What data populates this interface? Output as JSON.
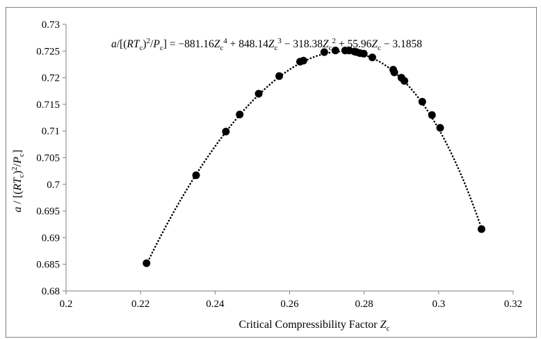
{
  "chart_data": {
    "type": "scatter",
    "title": "",
    "equation": {
      "lhs_a": "a",
      "lhs_open": "/[(",
      "lhs_R": "RT",
      "lhs_c1": "c",
      "lhs_close": ")",
      "lhs_sup2": "2",
      "lhs_slash": "/",
      "lhs_P": "P",
      "lhs_c2": "c",
      "lhs_end": "] = ",
      "term1": "−881.16",
      "z1": "Z",
      "c1": "c",
      "p1": "4",
      "term2": " + 848.14",
      "z2": "Z",
      "c2": "c",
      "p2": "3",
      "term3": " − 318.38",
      "z3": "Z",
      "c3": "c",
      "p3": "2",
      "term4": " + 55.96",
      "z4": "Z",
      "c4": "c",
      "term5": " − 3.1858"
    },
    "xlabel": {
      "text": "Critical Compressibility Factor  ",
      "var": "Z",
      "sub": "c"
    },
    "ylabel": {
      "a": "a",
      "open": " / [(",
      "RT": "RT",
      "c1": "c",
      "close": ")",
      "sup": "2",
      "slash": "/",
      "P": "P",
      "c2": "c",
      "end": "]"
    },
    "xlim": [
      0.2,
      0.32
    ],
    "ylim": [
      0.68,
      0.73
    ],
    "xticks": [
      "0.2",
      "0.22",
      "0.24",
      "0.26",
      "0.28",
      "0.3",
      "0.32"
    ],
    "yticks": [
      "0.68",
      "0.685",
      "0.69",
      "0.695",
      "0.7",
      "0.705",
      "0.71",
      "0.715",
      "0.72",
      "0.725",
      "0.73"
    ],
    "marker_color": "#000000",
    "trendline": {
      "style": "dotted",
      "type": "polynomial",
      "coefficients": [
        -881.16,
        848.14,
        -318.38,
        55.96,
        -3.1858
      ]
    },
    "points": [
      {
        "x": 0.2216,
        "y": 0.6852
      },
      {
        "x": 0.2349,
        "y": 0.7017
      },
      {
        "x": 0.2429,
        "y": 0.7099
      },
      {
        "x": 0.2466,
        "y": 0.7131
      },
      {
        "x": 0.2517,
        "y": 0.717
      },
      {
        "x": 0.2572,
        "y": 0.7203
      },
      {
        "x": 0.2628,
        "y": 0.723
      },
      {
        "x": 0.2637,
        "y": 0.7232
      },
      {
        "x": 0.2693,
        "y": 0.7248
      },
      {
        "x": 0.2723,
        "y": 0.7251
      },
      {
        "x": 0.2749,
        "y": 0.7251
      },
      {
        "x": 0.276,
        "y": 0.7251
      },
      {
        "x": 0.2774,
        "y": 0.7249
      },
      {
        "x": 0.278,
        "y": 0.7248
      },
      {
        "x": 0.2789,
        "y": 0.7246
      },
      {
        "x": 0.2799,
        "y": 0.7245
      },
      {
        "x": 0.2822,
        "y": 0.7238
      },
      {
        "x": 0.2878,
        "y": 0.7215
      },
      {
        "x": 0.2881,
        "y": 0.721
      },
      {
        "x": 0.29,
        "y": 0.72
      },
      {
        "x": 0.2908,
        "y": 0.7194
      },
      {
        "x": 0.2956,
        "y": 0.7155
      },
      {
        "x": 0.2982,
        "y": 0.713
      },
      {
        "x": 0.3004,
        "y": 0.7106
      },
      {
        "x": 0.3115,
        "y": 0.6916
      }
    ]
  }
}
